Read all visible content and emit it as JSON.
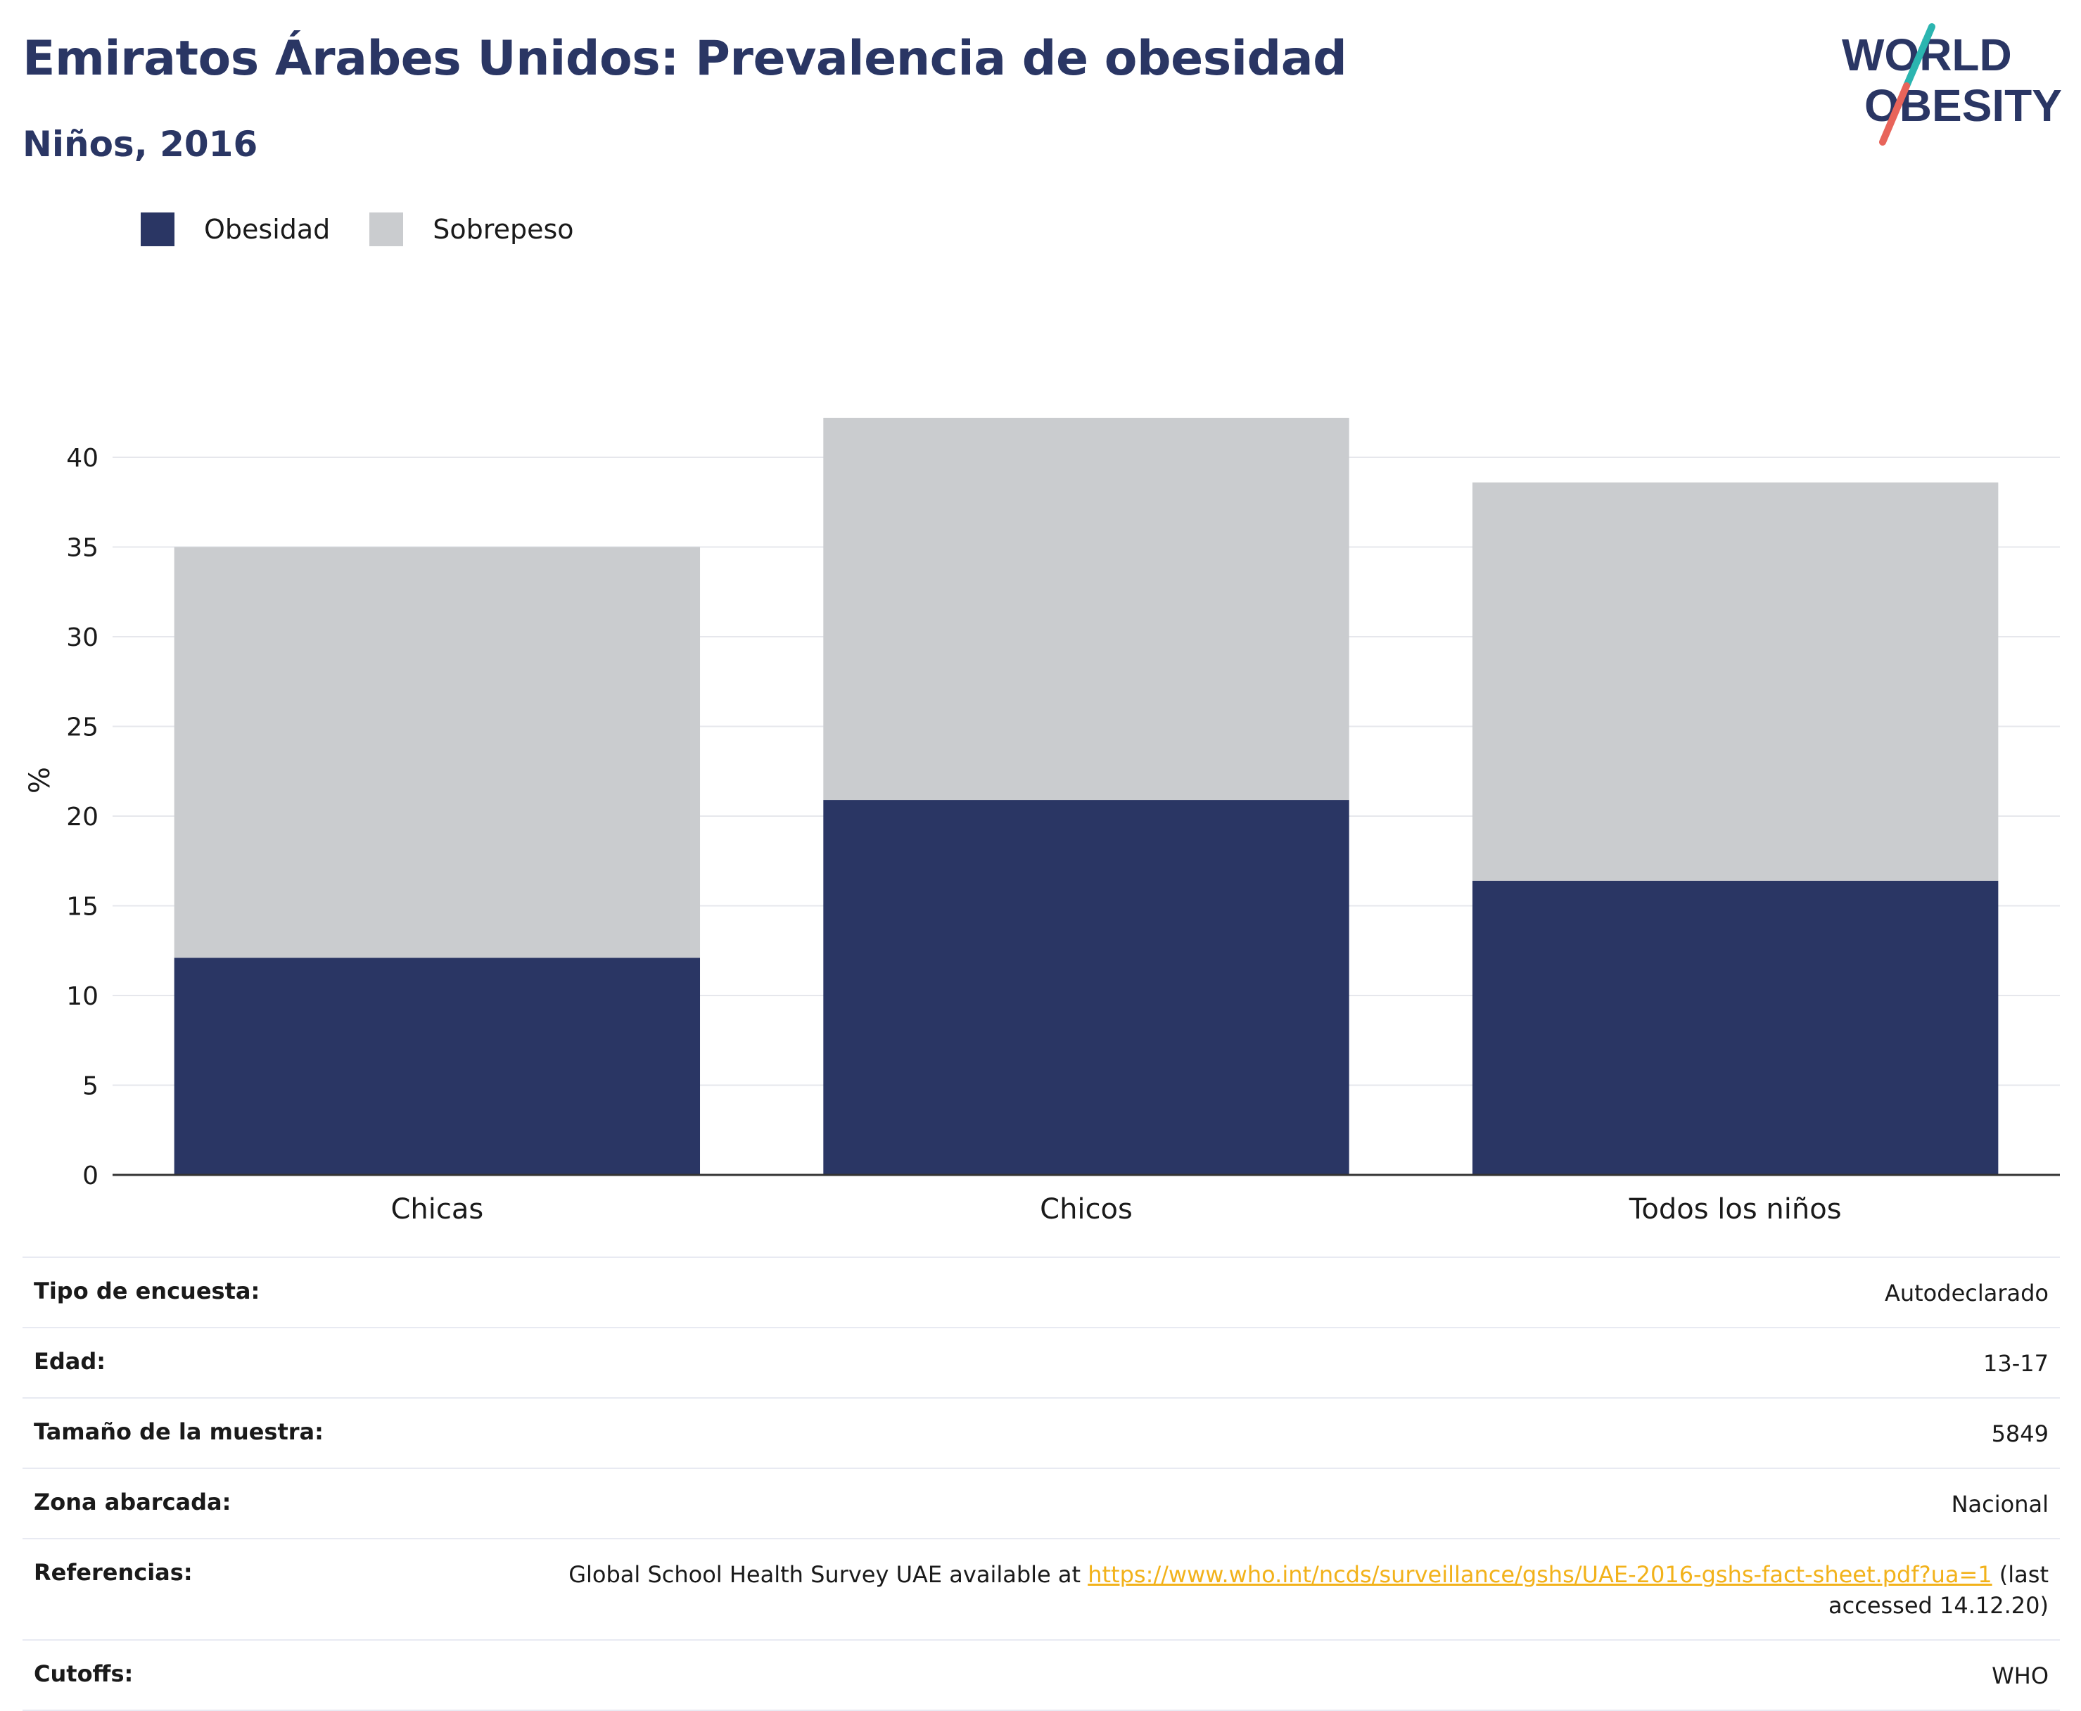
{
  "header": {
    "title": "Emiratos Árabes Unidos: Prevalencia de obesidad",
    "subtitle": "Niños, 2016"
  },
  "logo": {
    "line1": "WORLD",
    "line2": "OBESITY"
  },
  "colors": {
    "obesity": "#2a3664",
    "overweight": "#cacccf",
    "title": "#2a3664",
    "link": "#f2b21b",
    "logo_teal": "#2bb5b0",
    "logo_coral": "#e8645a"
  },
  "legend": {
    "items": [
      {
        "label": "Obesidad",
        "color": "#2a3664"
      },
      {
        "label": "Sobrepeso",
        "color": "#cacccf"
      }
    ]
  },
  "chart_data": {
    "type": "bar",
    "stacked": true,
    "categories": [
      "Chicas",
      "Chicos",
      "Todos los niños"
    ],
    "series": [
      {
        "name": "Obesidad",
        "values": [
          12.1,
          20.9,
          16.4
        ]
      },
      {
        "name": "Sobrepeso",
        "values": [
          22.9,
          21.3,
          22.2
        ]
      }
    ],
    "ylabel": "%",
    "ylim": [
      0,
      44
    ],
    "yticks": [
      0,
      5,
      10,
      15,
      20,
      25,
      30,
      35,
      40
    ],
    "grid": true,
    "legend_position": "top-left"
  },
  "meta": {
    "rows": [
      {
        "key": "Tipo de encuesta:",
        "value": "Autodeclarado"
      },
      {
        "key": "Edad:",
        "value": "13-17"
      },
      {
        "key": "Tamaño de la muestra:",
        "value": "5849"
      },
      {
        "key": "Zona abarcada:",
        "value": "Nacional"
      },
      {
        "key": "Cutoffs:",
        "value": "WHO"
      }
    ],
    "references": {
      "key": "Referencias:",
      "prefix": "Global School Health Survey UAE available at ",
      "link": "https://www.who.int/ncds/surveillance/gshs/UAE-2016-gshs-fact-sheet.pdf?ua=1",
      "suffix": " (last accessed 14.12.20)"
    }
  }
}
